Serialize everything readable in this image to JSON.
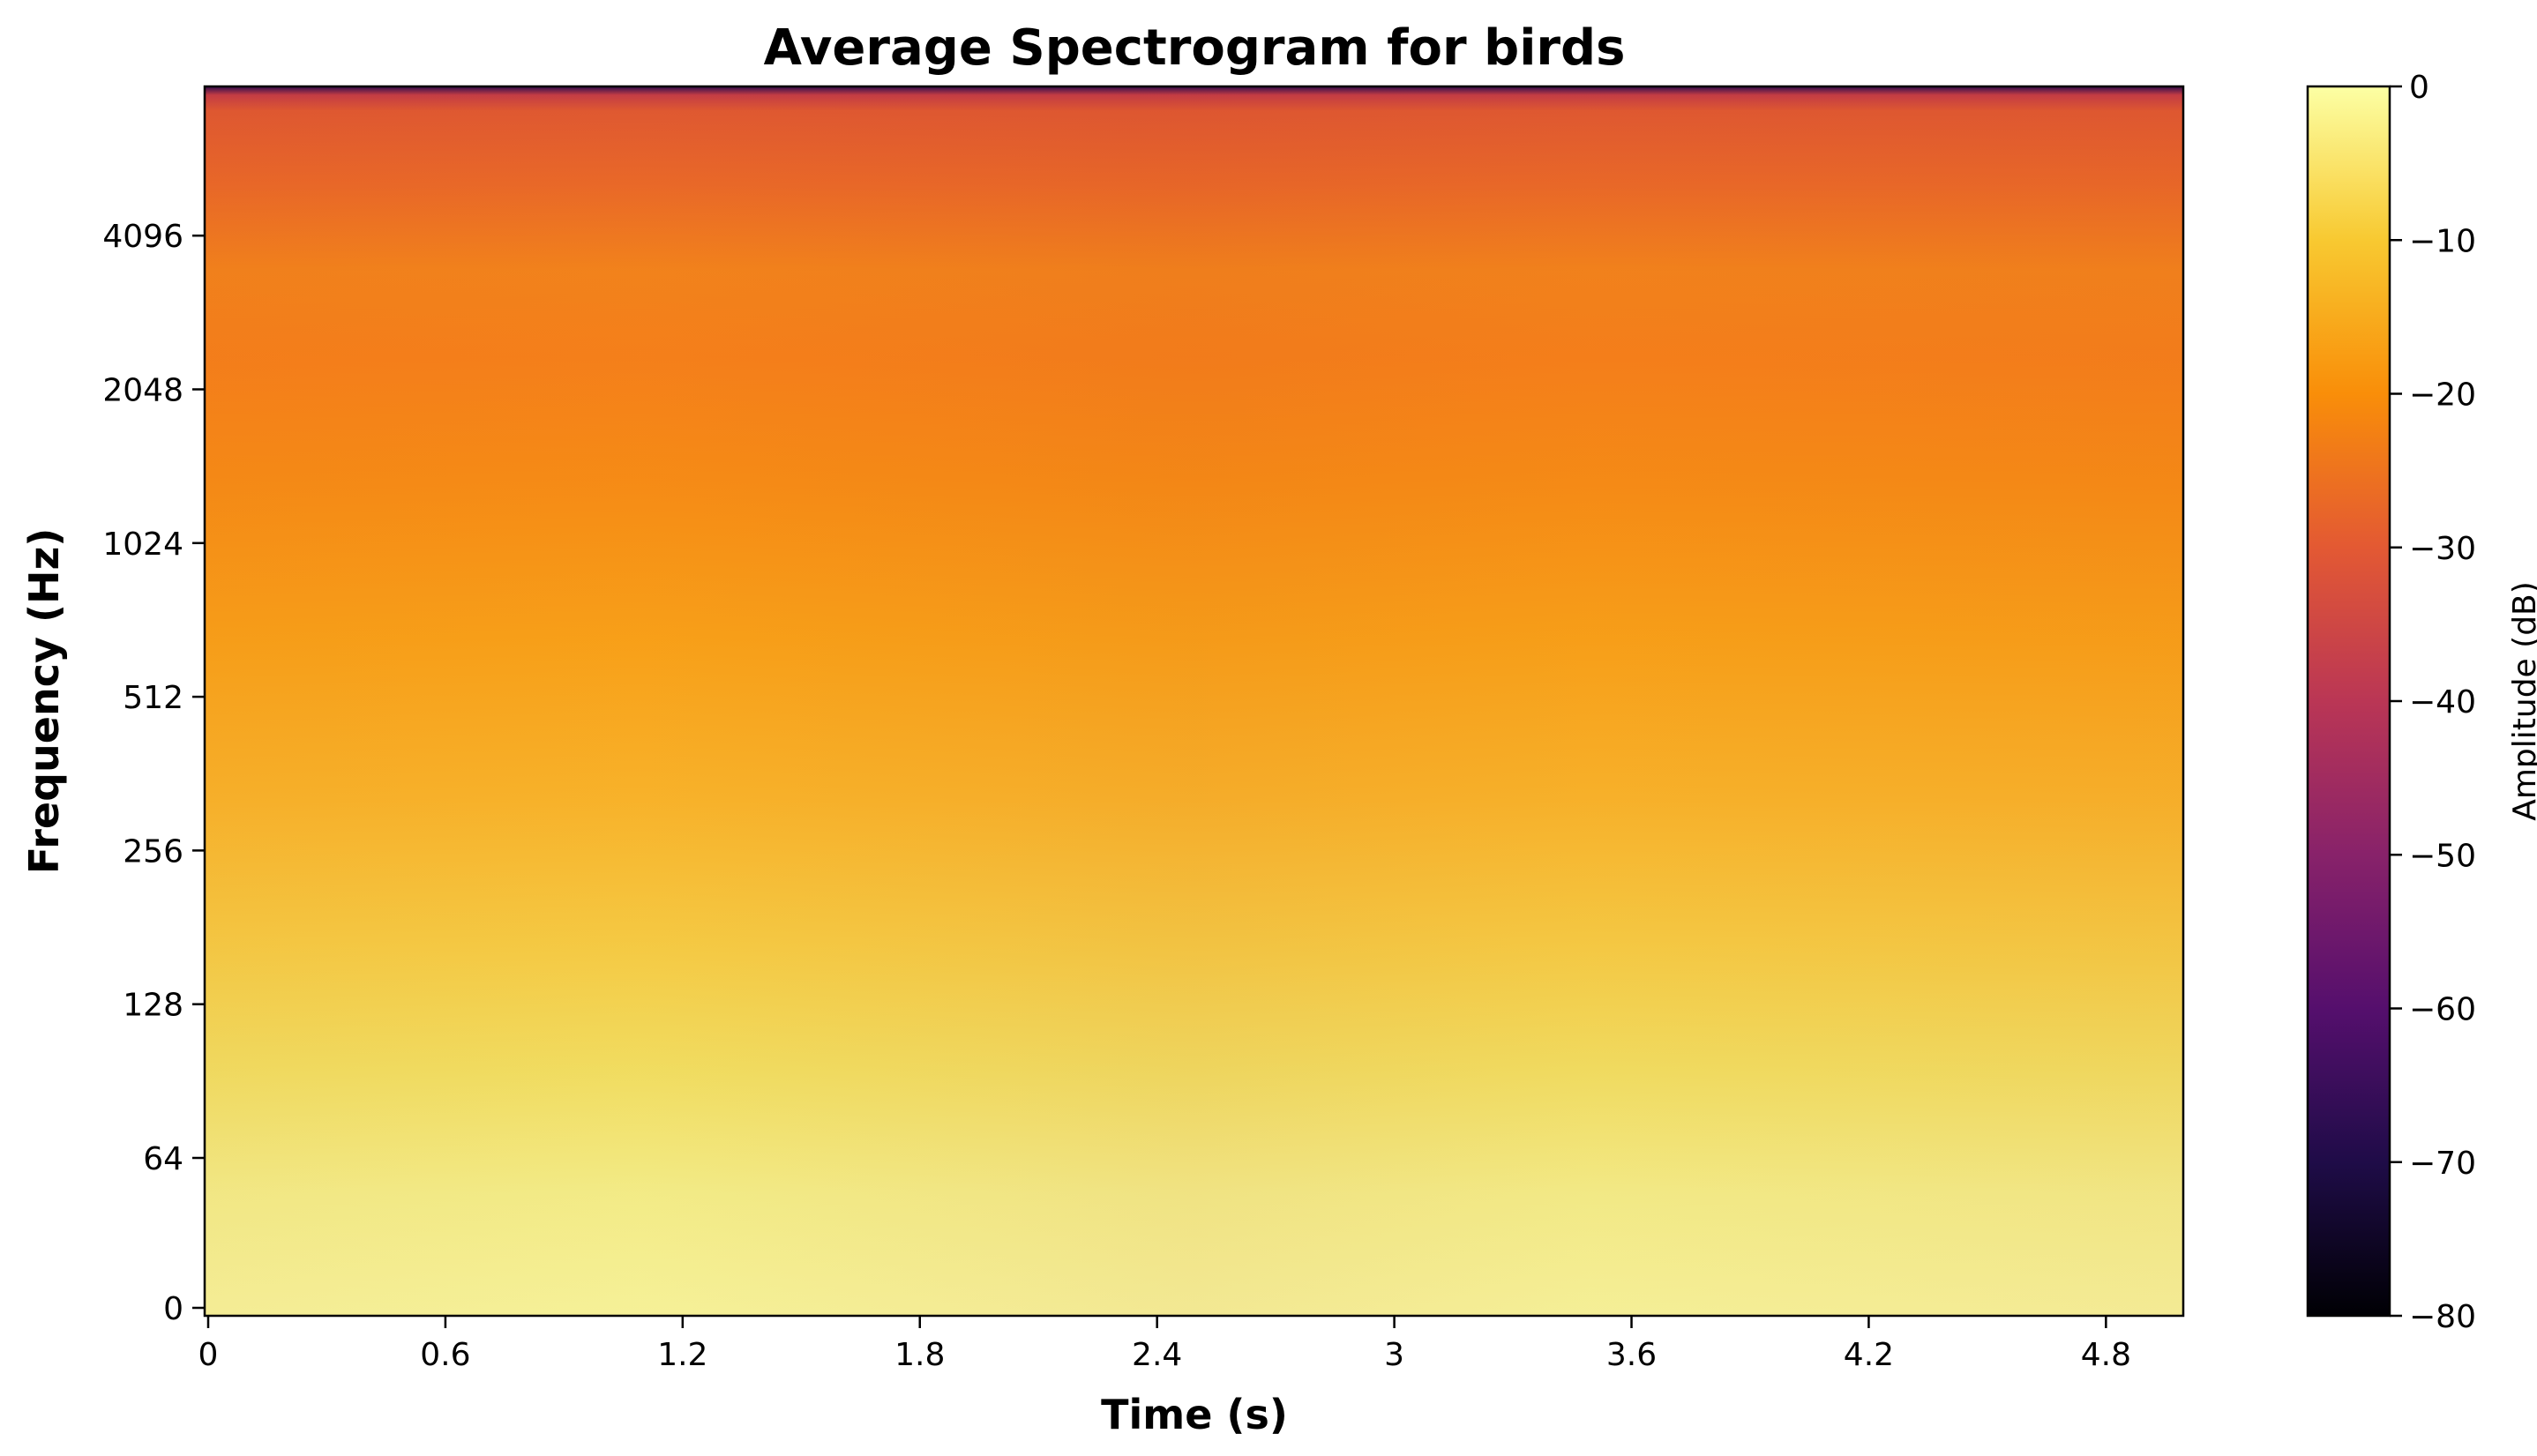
{
  "chart_data": {
    "type": "heatmap",
    "title": "Average Spectrogram for birds",
    "xlabel": "Time (s)",
    "ylabel": "Frequency (Hz)",
    "xlim": [
      0,
      5.0
    ],
    "x_ticks": [
      "0",
      "0.6",
      "1.2",
      "1.8",
      "2.4",
      "3",
      "3.6",
      "4.2",
      "4.8"
    ],
    "x_tick_values": [
      0,
      0.6,
      1.2,
      1.8,
      2.4,
      3.0,
      3.6,
      4.2,
      4.8
    ],
    "y_scale": "log2 (symlog near 0)",
    "y_ticks": [
      "0",
      "64",
      "128",
      "256",
      "512",
      "1024",
      "2048",
      "4096"
    ],
    "y_tick_values": [
      0,
      64,
      128,
      256,
      512,
      1024,
      2048,
      4096
    ],
    "ylim": [
      0,
      11025
    ],
    "colormap": "inferno",
    "colorbar": {
      "label": "Amplitude (dB)",
      "range": [
        -80,
        0
      ],
      "ticks": [
        "0",
        "−10",
        "−20",
        "−30",
        "−40",
        "−50",
        "−60",
        "−70",
        "−80"
      ],
      "tick_values": [
        0,
        -10,
        -20,
        -30,
        -40,
        -50,
        -60,
        -70,
        -80
      ]
    },
    "intensity_profile_db": [
      {
        "frequency": 0,
        "amplitude_db": -1
      },
      {
        "frequency": 32,
        "amplitude_db": -2
      },
      {
        "frequency": 64,
        "amplitude_db": -3
      },
      {
        "frequency": 128,
        "amplitude_db": -6
      },
      {
        "frequency": 256,
        "amplitude_db": -11
      },
      {
        "frequency": 512,
        "amplitude_db": -16
      },
      {
        "frequency": 1024,
        "amplitude_db": -20
      },
      {
        "frequency": 2048,
        "amplitude_db": -23
      },
      {
        "frequency": 4096,
        "amplitude_db": -24
      },
      {
        "frequency": 6500,
        "amplitude_db": -28
      },
      {
        "frequency": 8000,
        "amplitude_db": -30
      },
      {
        "frequency": 11025,
        "amplitude_db": -60
      }
    ],
    "grid": false
  }
}
